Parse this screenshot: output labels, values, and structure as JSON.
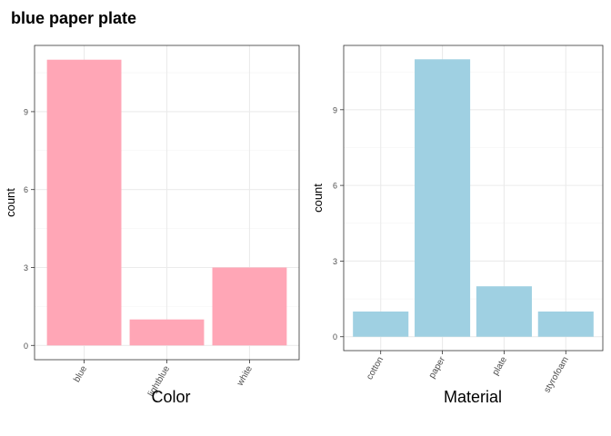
{
  "title": "blue paper plate",
  "colors": {
    "left_bar": "#ffa6b6",
    "right_bar": "#9fd0e2",
    "grid": "#ebebeb",
    "axis": "#333333"
  },
  "chart_data": [
    {
      "type": "bar",
      "categories": [
        "blue",
        "lightblue",
        "white"
      ],
      "values": [
        11,
        1,
        3
      ],
      "xlabel": "Color",
      "ylabel": "count",
      "yticks": [
        0,
        3,
        6,
        9
      ],
      "ylim": [
        -0.55,
        11.55
      ],
      "grid": true,
      "color": "#ffa6b6"
    },
    {
      "type": "bar",
      "categories": [
        "cotton",
        "paper",
        "plate",
        "styrofoam"
      ],
      "values": [
        1,
        11,
        2,
        1
      ],
      "xlabel": "Material",
      "ylabel": "count",
      "yticks": [
        0,
        3,
        6,
        9
      ],
      "ylim": [
        -0.55,
        11.55
      ],
      "grid": true,
      "color": "#9fd0e2"
    }
  ]
}
